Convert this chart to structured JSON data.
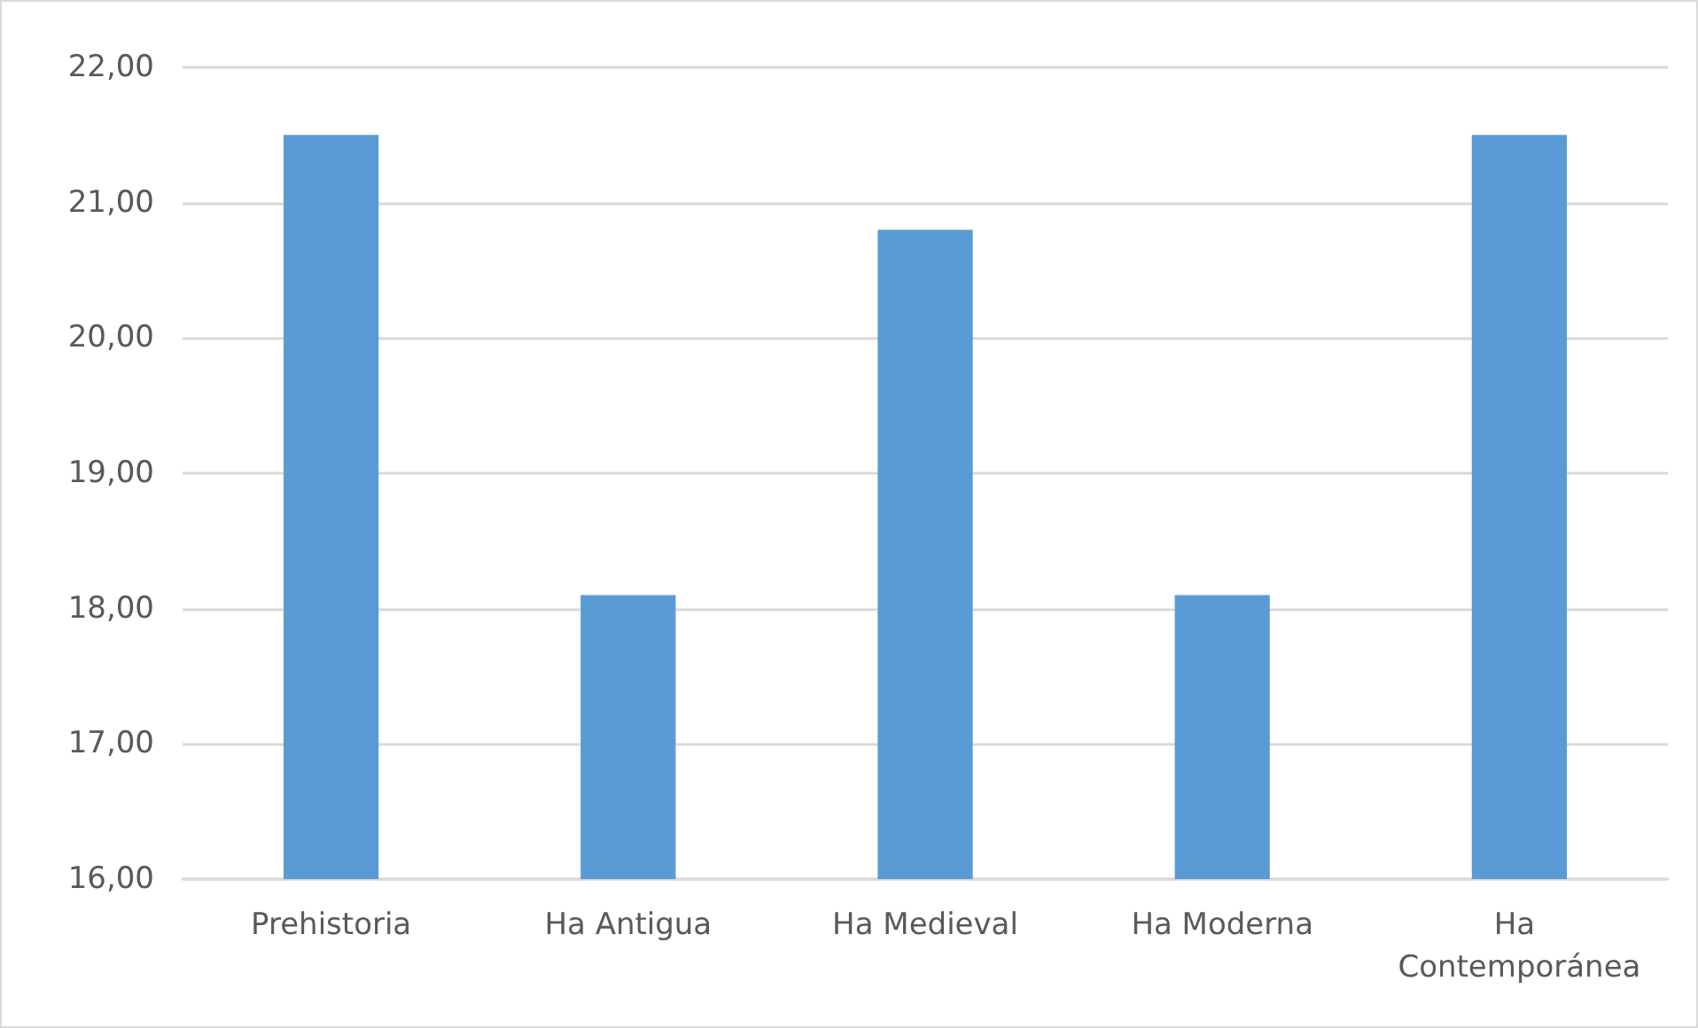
{
  "chart_data": {
    "type": "bar",
    "categories": [
      "Prehistoria",
      "Ha Antigua",
      "Ha Medieval",
      "Ha Moderna",
      "Ha Contemporánea"
    ],
    "values": [
      21.5,
      18.1,
      20.8,
      18.1,
      21.5
    ],
    "color": "#5b9bd5",
    "ylim": [
      16,
      22
    ],
    "yticks": [
      {
        "value": 16,
        "label": "16,00"
      },
      {
        "value": 17,
        "label": "17,00"
      },
      {
        "value": 18,
        "label": "18,00"
      },
      {
        "value": 19,
        "label": "19,00"
      },
      {
        "value": 20,
        "label": "20,00"
      },
      {
        "value": 21,
        "label": "21,00"
      },
      {
        "value": 22,
        "label": "22,00"
      }
    ],
    "grid": "y"
  }
}
